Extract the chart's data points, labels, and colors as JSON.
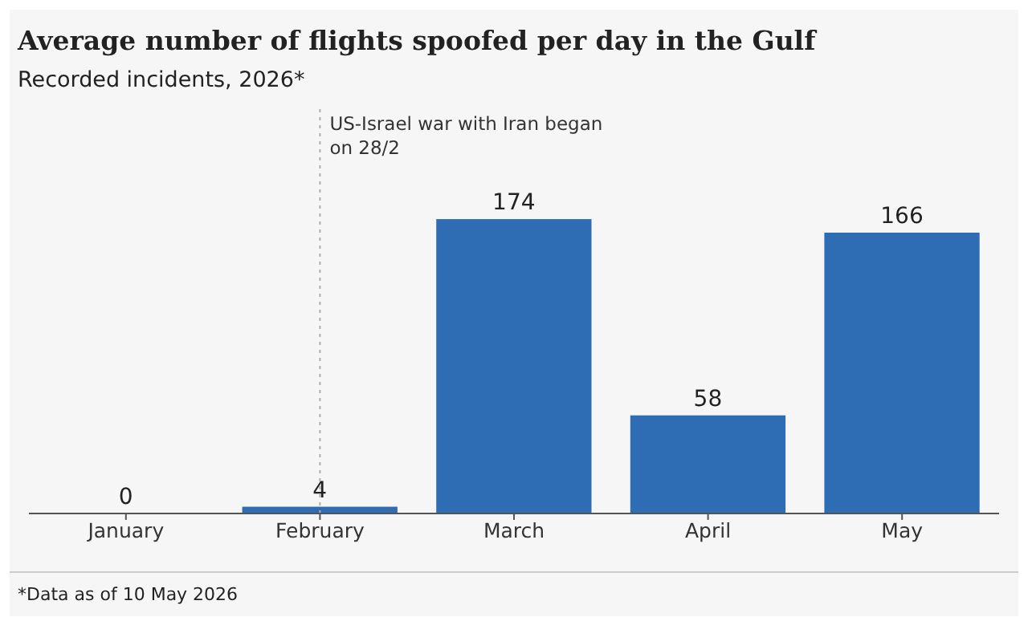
{
  "chart_data": {
    "type": "bar",
    "title": "Average number of flights spoofed per day in the Gulf",
    "subtitle": "Recorded incidents, 2026*",
    "categories": [
      "January",
      "February",
      "March",
      "April",
      "May"
    ],
    "values": [
      0,
      4,
      174,
      58,
      166
    ],
    "color": "#2e6db4",
    "data_labels": true,
    "ref_lines": [
      {
        "axis": "x",
        "value": "February",
        "label": "US-Israel war with Iran began on 28/2",
        "line_style": "dotted",
        "color": "#b0b0b0"
      }
    ],
    "annotations": [
      "*Data as of 10 May 2026"
    ]
  }
}
